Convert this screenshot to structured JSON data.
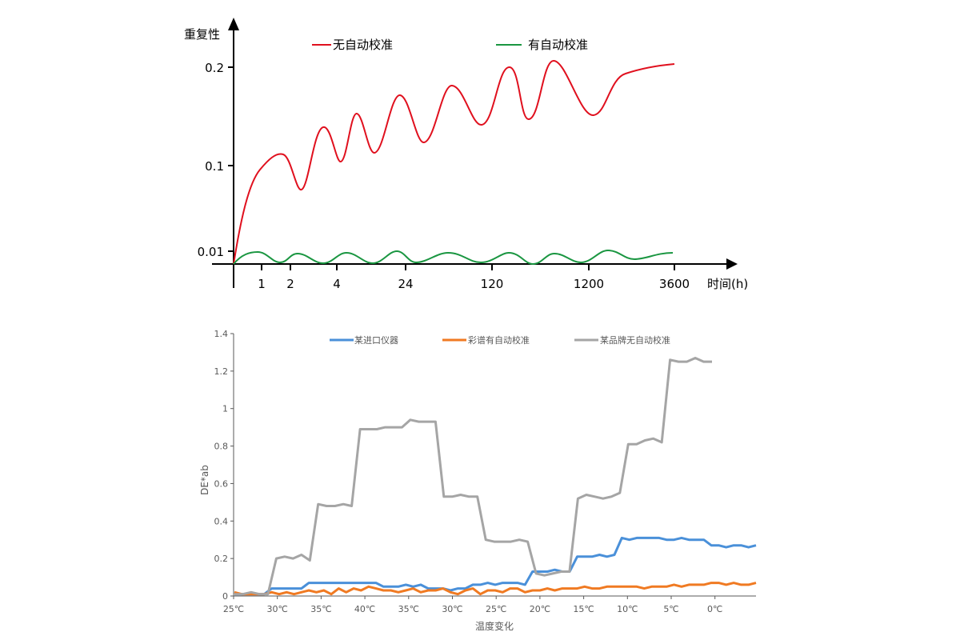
{
  "chart_data": [
    {
      "type": "line",
      "title": "",
      "ylabel": "重复性",
      "xlabel": "时间(h)",
      "x_ticks": [
        "1",
        "2",
        "4",
        "24",
        "120",
        "1200",
        "3600"
      ],
      "y_ticks": [
        "0.01",
        "0.1",
        "0.2"
      ],
      "legend_position": "top",
      "grid": false,
      "series": [
        {
          "name": "无自动校准",
          "color": "#e0101e",
          "description": "Rises from 0 and oscillates upward toward ~0.2, plateauing near 0.205 at 3600h",
          "points": [
            [
              0,
              0
            ],
            [
              1.5,
              0.11
            ],
            [
              2.2,
              0.07
            ],
            [
              3,
              0.13
            ],
            [
              4,
              0.095
            ],
            [
              6,
              0.145
            ],
            [
              10,
              0.105
            ],
            [
              20,
              0.165
            ],
            [
              40,
              0.118
            ],
            [
              70,
              0.18
            ],
            [
              110,
              0.14
            ],
            [
              180,
              0.2
            ],
            [
              260,
              0.145
            ],
            [
              400,
              0.205
            ],
            [
              900,
              0.15
            ],
            [
              1500,
              0.195
            ],
            [
              3600,
              0.205
            ]
          ]
        },
        {
          "name": "有自动校准",
          "color": "#1a9641",
          "description": "Stays near 0.01, small oscillations between ~0.005 and ~0.0105",
          "points": [
            [
              0,
              0
            ],
            [
              1,
              0.01
            ],
            [
              1.5,
              0.005
            ],
            [
              2.2,
              0.009
            ],
            [
              3,
              0.005
            ],
            [
              4.5,
              0.009
            ],
            [
              8,
              0.005
            ],
            [
              22,
              0.0095
            ],
            [
              35,
              0.005
            ],
            [
              80,
              0.009
            ],
            [
              150,
              0.005
            ],
            [
              250,
              0.009
            ],
            [
              350,
              0.004
            ],
            [
              700,
              0.009
            ],
            [
              1000,
              0.005
            ],
            [
              1700,
              0.01
            ],
            [
              2500,
              0.006
            ],
            [
              3600,
              0.01
            ]
          ]
        }
      ]
    },
    {
      "type": "line",
      "title": "",
      "ylabel": "DE*ab",
      "xlabel": "温度变化",
      "x_ticks": [
        "25℃",
        "30℃",
        "35℃",
        "40℃",
        "35℃",
        "30℃",
        "25℃",
        "20℃",
        "15℃",
        "10℃",
        "5℃",
        "0℃"
      ],
      "y_ticks": [
        "0",
        "0.2",
        "0.4",
        "0.6",
        "0.8",
        "1",
        "1.2",
        "1.4"
      ],
      "ylim": [
        0,
        1.4
      ],
      "legend_position": "top",
      "grid": false,
      "series": [
        {
          "name": "某进口仪器",
          "color": "#4a90d9",
          "values": [
            0.01,
            0.01,
            0.01,
            0.01,
            0.01,
            0.04,
            0.04,
            0.04,
            0.04,
            0.04,
            0.07,
            0.07,
            0.07,
            0.07,
            0.07,
            0.07,
            0.07,
            0.07,
            0.07,
            0.07,
            0.05,
            0.05,
            0.05,
            0.06,
            0.05,
            0.06,
            0.04,
            0.04,
            0.04,
            0.03,
            0.04,
            0.04,
            0.06,
            0.06,
            0.07,
            0.06,
            0.07,
            0.07,
            0.07,
            0.06,
            0.13,
            0.13,
            0.13,
            0.14,
            0.13,
            0.13,
            0.21,
            0.21,
            0.21,
            0.22,
            0.21,
            0.22,
            0.31,
            0.3,
            0.31,
            0.31,
            0.31,
            0.31,
            0.3,
            0.3,
            0.31,
            0.3,
            0.3,
            0.3,
            0.27,
            0.27,
            0.26,
            0.27,
            0.27,
            0.26,
            0.27
          ]
        },
        {
          "name": "彩谱有自动校准",
          "color": "#f07a22",
          "values": [
            0.02,
            0.01,
            0.01,
            0.01,
            0.01,
            0.02,
            0.01,
            0.02,
            0.01,
            0.02,
            0.03,
            0.02,
            0.03,
            0.01,
            0.04,
            0.02,
            0.04,
            0.03,
            0.05,
            0.04,
            0.03,
            0.03,
            0.02,
            0.03,
            0.04,
            0.02,
            0.03,
            0.03,
            0.04,
            0.02,
            0.01,
            0.03,
            0.04,
            0.01,
            0.03,
            0.03,
            0.02,
            0.04,
            0.04,
            0.02,
            0.03,
            0.03,
            0.04,
            0.03,
            0.04,
            0.04,
            0.04,
            0.05,
            0.04,
            0.04,
            0.05,
            0.05,
            0.05,
            0.05,
            0.05,
            0.04,
            0.05,
            0.05,
            0.05,
            0.06,
            0.05,
            0.06,
            0.06,
            0.06,
            0.07,
            0.07,
            0.06,
            0.07,
            0.06,
            0.06,
            0.07
          ]
        },
        {
          "name": "某品牌无自动校准",
          "color": "#a5a5a5",
          "values": [
            0.01,
            0.01,
            0.02,
            0.01,
            0.01,
            0.2,
            0.21,
            0.2,
            0.22,
            0.19,
            0.49,
            0.48,
            0.48,
            0.49,
            0.48,
            0.89,
            0.89,
            0.89,
            0.9,
            0.9,
            0.9,
            0.94,
            0.93,
            0.93,
            0.93,
            0.53,
            0.53,
            0.54,
            0.53,
            0.53,
            0.3,
            0.29,
            0.29,
            0.29,
            0.3,
            0.29,
            0.12,
            0.11,
            0.12,
            0.13,
            0.13,
            0.52,
            0.54,
            0.53,
            0.52,
            0.53,
            0.55,
            0.81,
            0.81,
            0.83,
            0.84,
            0.82,
            1.26,
            1.25,
            1.25,
            1.27,
            1.25,
            1.25
          ]
        }
      ]
    }
  ],
  "top_chart": {
    "y_axis_title": "重复性",
    "x_axis_title": "时间(h)",
    "legend": [
      {
        "label": "无自动校准",
        "color": "#e0101e"
      },
      {
        "label": "有自动校准",
        "color": "#1a9641"
      }
    ],
    "y_ticks": [
      {
        "label": "0.2",
        "y": 84
      },
      {
        "label": "0.1",
        "y": 207
      },
      {
        "label": "0.01",
        "y": 314
      }
    ],
    "x_ticks": [
      {
        "label": "1",
        "x": 327
      },
      {
        "label": "2",
        "x": 363
      },
      {
        "label": "4",
        "x": 421
      },
      {
        "label": "24",
        "x": 507
      },
      {
        "label": "120",
        "x": 615
      },
      {
        "label": "1200",
        "x": 736
      },
      {
        "label": "3600",
        "x": 843
      }
    ]
  },
  "bottom_chart": {
    "y_axis_title": "DE*ab",
    "x_axis_title": "温度变化",
    "legend": [
      {
        "label": "某进口仪器",
        "color": "#4a90d9"
      },
      {
        "label": "彩谱有自动校准",
        "color": "#f07a22"
      },
      {
        "label": "某品牌无自动校准",
        "color": "#a5a5a5"
      }
    ],
    "y_ticks": [
      "0",
      "0.2",
      "0.4",
      "0.6",
      "0.8",
      "1",
      "1.2",
      "1.4"
    ],
    "x_ticks": [
      "25℃",
      "30℃",
      "35℃",
      "40℃",
      "35℃",
      "30℃",
      "25℃",
      "20℃",
      "15℃",
      "10℃",
      "5℃",
      "0℃"
    ]
  }
}
